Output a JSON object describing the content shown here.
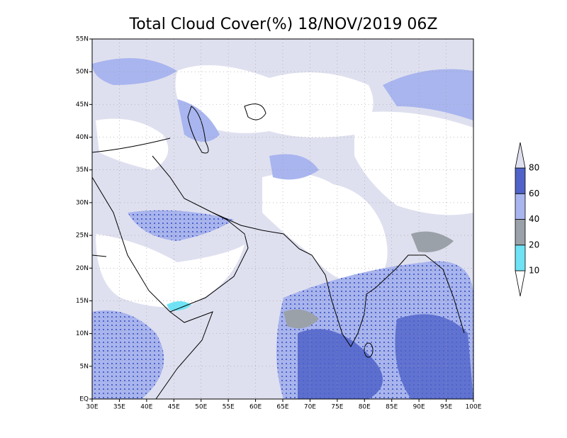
{
  "title": "Total Cloud Cover(%) 18/NOV/2019 06Z",
  "map": {
    "lon_labels": [
      "30E",
      "35E",
      "40E",
      "45E",
      "50E",
      "55E",
      "60E",
      "65E",
      "70E",
      "75E",
      "80E",
      "85E",
      "90E",
      "95E",
      "100E"
    ],
    "lat_labels": [
      "EQ",
      "5N",
      "10N",
      "15N",
      "20N",
      "25N",
      "30N",
      "35N",
      "40N",
      "45N",
      "50N",
      "55N"
    ]
  },
  "colorbar": {
    "levels": [
      10,
      20,
      40,
      60,
      80
    ],
    "colors": [
      "#ffffff",
      "#6fe3f5",
      "#9aa1a8",
      "#a9b5ef",
      "#4f63c9",
      "#dfe0ef"
    ]
  }
}
